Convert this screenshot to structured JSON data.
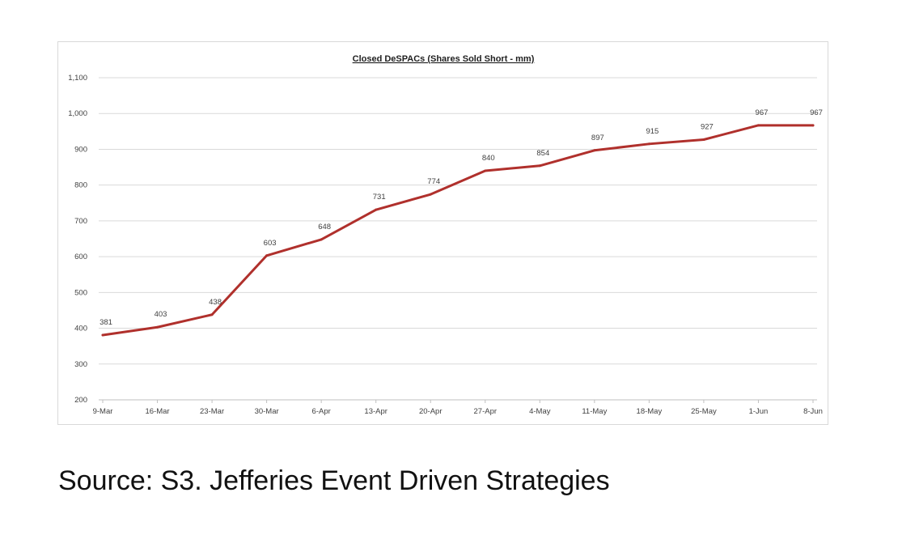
{
  "chart_data": {
    "type": "line",
    "title": "Closed DeSPACs (Shares Sold Short - mm)",
    "xlabel": "",
    "ylabel": "",
    "categories": [
      "9-Mar",
      "16-Mar",
      "23-Mar",
      "30-Mar",
      "6-Apr",
      "13-Apr",
      "20-Apr",
      "27-Apr",
      "4-May",
      "11-May",
      "18-May",
      "25-May",
      "1-Jun",
      "8-Jun"
    ],
    "series": [
      {
        "name": "Closed DeSPACs (Shares Sold Short - mm)",
        "values": [
          381,
          403,
          438,
          603,
          648,
          731,
          774,
          840,
          854,
          897,
          915,
          927,
          967,
          967
        ],
        "color": "#b0302c"
      }
    ],
    "ylim": [
      200,
      1100
    ],
    "yticks": [
      200,
      300,
      400,
      500,
      600,
      700,
      800,
      900,
      1000,
      1100
    ],
    "ytick_labels": [
      "200",
      "300",
      "400",
      "500",
      "600",
      "700",
      "800",
      "900",
      "1,000",
      "1,100"
    ],
    "grid": true,
    "legend": "none"
  },
  "footer": {
    "source": "Source: S3.  Jefferies Event Driven Strategies"
  }
}
